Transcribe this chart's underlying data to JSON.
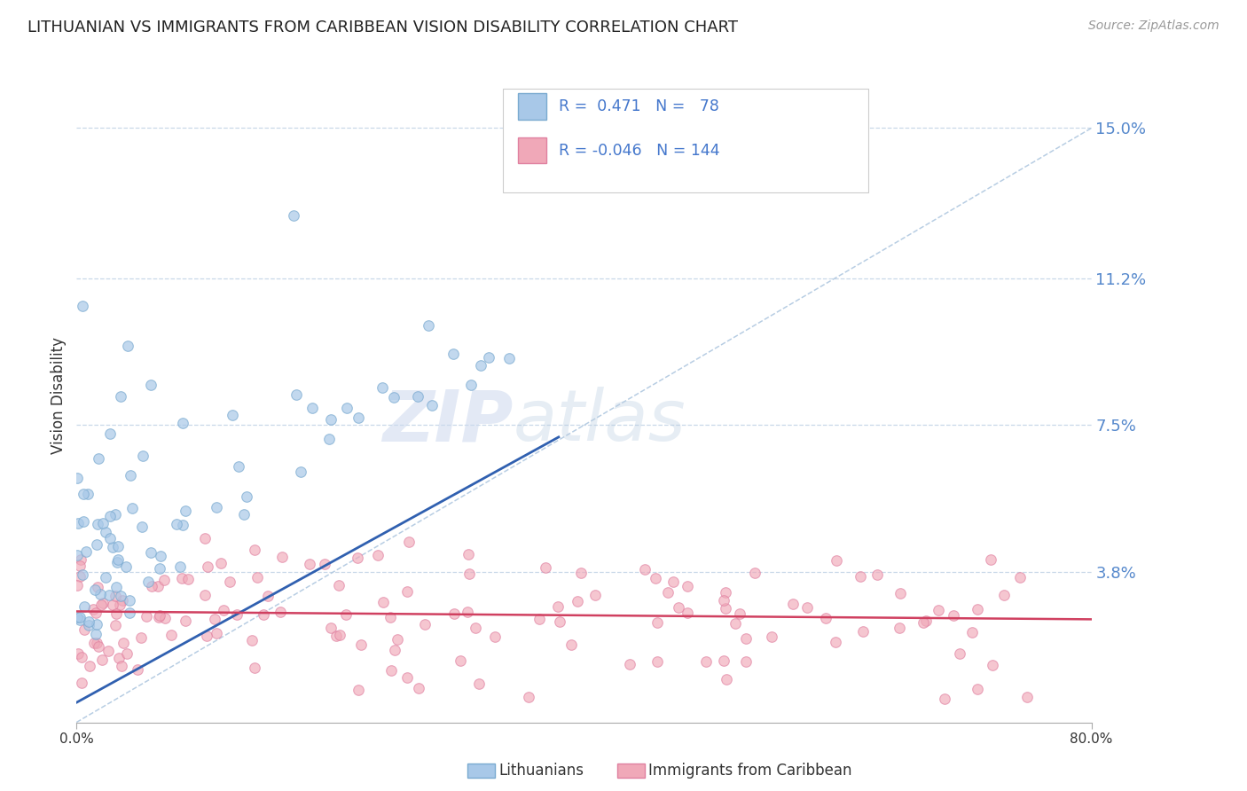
{
  "title": "LITHUANIAN VS IMMIGRANTS FROM CARIBBEAN VISION DISABILITY CORRELATION CHART",
  "source": "Source: ZipAtlas.com",
  "ylabel": "Vision Disability",
  "xlim": [
    0.0,
    0.8
  ],
  "ylim": [
    0.0,
    0.165
  ],
  "yticks": [
    0.038,
    0.075,
    0.112,
    0.15
  ],
  "ytick_labels": [
    "3.8%",
    "7.5%",
    "11.2%",
    "15.0%"
  ],
  "blue_R": 0.471,
  "blue_N": 78,
  "pink_R": -0.046,
  "pink_N": 144,
  "blue_color": "#a8c8e8",
  "pink_color": "#f0a8b8",
  "blue_edge_color": "#7aaad0",
  "pink_edge_color": "#e080a0",
  "blue_line_color": "#3060b0",
  "pink_line_color": "#d04060",
  "diag_color": "#b0c8e0",
  "legend_label_blue": "Lithuanians",
  "legend_label_pink": "Immigrants from Caribbean",
  "background_color": "#ffffff",
  "title_fontsize": 13,
  "tick_color": "#5588cc",
  "legend_text_color": "#333333",
  "legend_rn_color": "#4477cc"
}
